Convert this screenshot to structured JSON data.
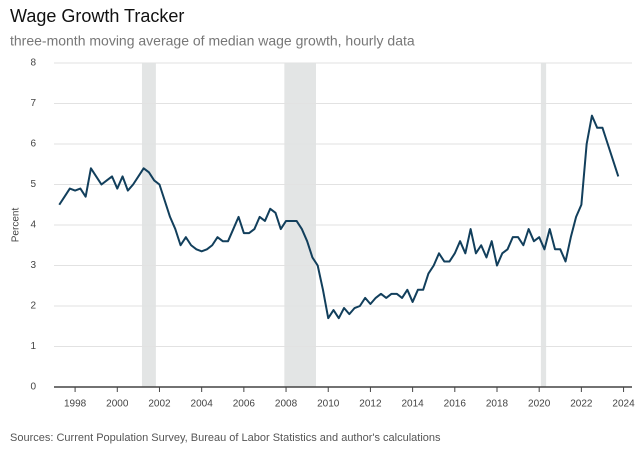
{
  "chart_data": {
    "type": "line",
    "title": "Wage Growth Tracker",
    "subtitle": "three-month moving average of median wage growth, hourly data",
    "ylabel": "Percent",
    "source": "Sources: Current Population Survey, Bureau of Labor Statistics and author's calculations",
    "x": [
      1997.25,
      1997.5,
      1997.75,
      1998,
      1998.25,
      1998.5,
      1998.75,
      1999,
      1999.25,
      1999.5,
      1999.75,
      2000,
      2000.25,
      2000.5,
      2000.75,
      2001,
      2001.25,
      2001.5,
      2001.75,
      2002,
      2002.25,
      2002.5,
      2002.75,
      2003,
      2003.25,
      2003.5,
      2003.75,
      2004,
      2004.25,
      2004.5,
      2004.75,
      2005,
      2005.25,
      2005.5,
      2005.75,
      2006,
      2006.25,
      2006.5,
      2006.75,
      2007,
      2007.25,
      2007.5,
      2007.75,
      2008,
      2008.25,
      2008.5,
      2008.75,
      2009,
      2009.25,
      2009.5,
      2009.75,
      2010,
      2010.25,
      2010.5,
      2010.75,
      2011,
      2011.25,
      2011.5,
      2011.75,
      2012,
      2012.25,
      2012.5,
      2012.75,
      2013,
      2013.25,
      2013.5,
      2013.75,
      2014,
      2014.25,
      2014.5,
      2014.75,
      2015,
      2015.25,
      2015.5,
      2015.75,
      2016,
      2016.25,
      2016.5,
      2016.75,
      2017,
      2017.25,
      2017.5,
      2017.75,
      2018,
      2018.25,
      2018.5,
      2018.75,
      2019,
      2019.25,
      2019.5,
      2019.75,
      2020,
      2020.25,
      2020.5,
      2020.75,
      2021,
      2021.25,
      2021.5,
      2021.75,
      2022,
      2022.25,
      2022.5,
      2022.75,
      2023,
      2023.25,
      2023.5,
      2023.75
    ],
    "series": [
      {
        "name": "Wage growth",
        "color": "#123f5c",
        "values": [
          4.5,
          4.7,
          4.9,
          4.85,
          4.9,
          4.7,
          5.4,
          5.2,
          5.0,
          5.1,
          5.2,
          4.9,
          5.2,
          4.85,
          5.0,
          5.2,
          5.4,
          5.3,
          5.1,
          5.0,
          4.6,
          4.2,
          3.9,
          3.5,
          3.7,
          3.5,
          3.4,
          3.35,
          3.4,
          3.5,
          3.7,
          3.6,
          3.6,
          3.9,
          4.2,
          3.8,
          3.8,
          3.9,
          4.2,
          4.1,
          4.4,
          4.3,
          3.9,
          4.1,
          4.1,
          4.1,
          3.9,
          3.6,
          3.2,
          3.0,
          2.4,
          1.7,
          1.9,
          1.7,
          1.95,
          1.8,
          1.95,
          2.0,
          2.2,
          2.05,
          2.2,
          2.3,
          2.2,
          2.3,
          2.3,
          2.2,
          2.4,
          2.1,
          2.4,
          2.4,
          2.8,
          3.0,
          3.3,
          3.1,
          3.1,
          3.3,
          3.6,
          3.3,
          3.9,
          3.3,
          3.5,
          3.2,
          3.6,
          3.0,
          3.3,
          3.4,
          3.7,
          3.7,
          3.5,
          3.9,
          3.6,
          3.7,
          3.4,
          3.9,
          3.4,
          3.4,
          3.1,
          3.7,
          4.2,
          4.5,
          6.0,
          6.7,
          6.4,
          6.4,
          6.0,
          5.6,
          5.2
        ]
      }
    ],
    "shaded_ranges": [
      [
        2001.17,
        2001.83
      ],
      [
        2007.92,
        2009.42
      ],
      [
        2020.08,
        2020.33
      ]
    ],
    "shade_color": "#e3e5e5",
    "xlim": [
      1997,
      2024.4
    ],
    "xticks": [
      1998,
      2000,
      2002,
      2004,
      2006,
      2008,
      2010,
      2012,
      2014,
      2016,
      2018,
      2020,
      2022,
      2024
    ],
    "ylim": [
      0,
      8
    ],
    "yticks": [
      0,
      1,
      2,
      3,
      4,
      5,
      6,
      7,
      8
    ],
    "grid": true
  }
}
